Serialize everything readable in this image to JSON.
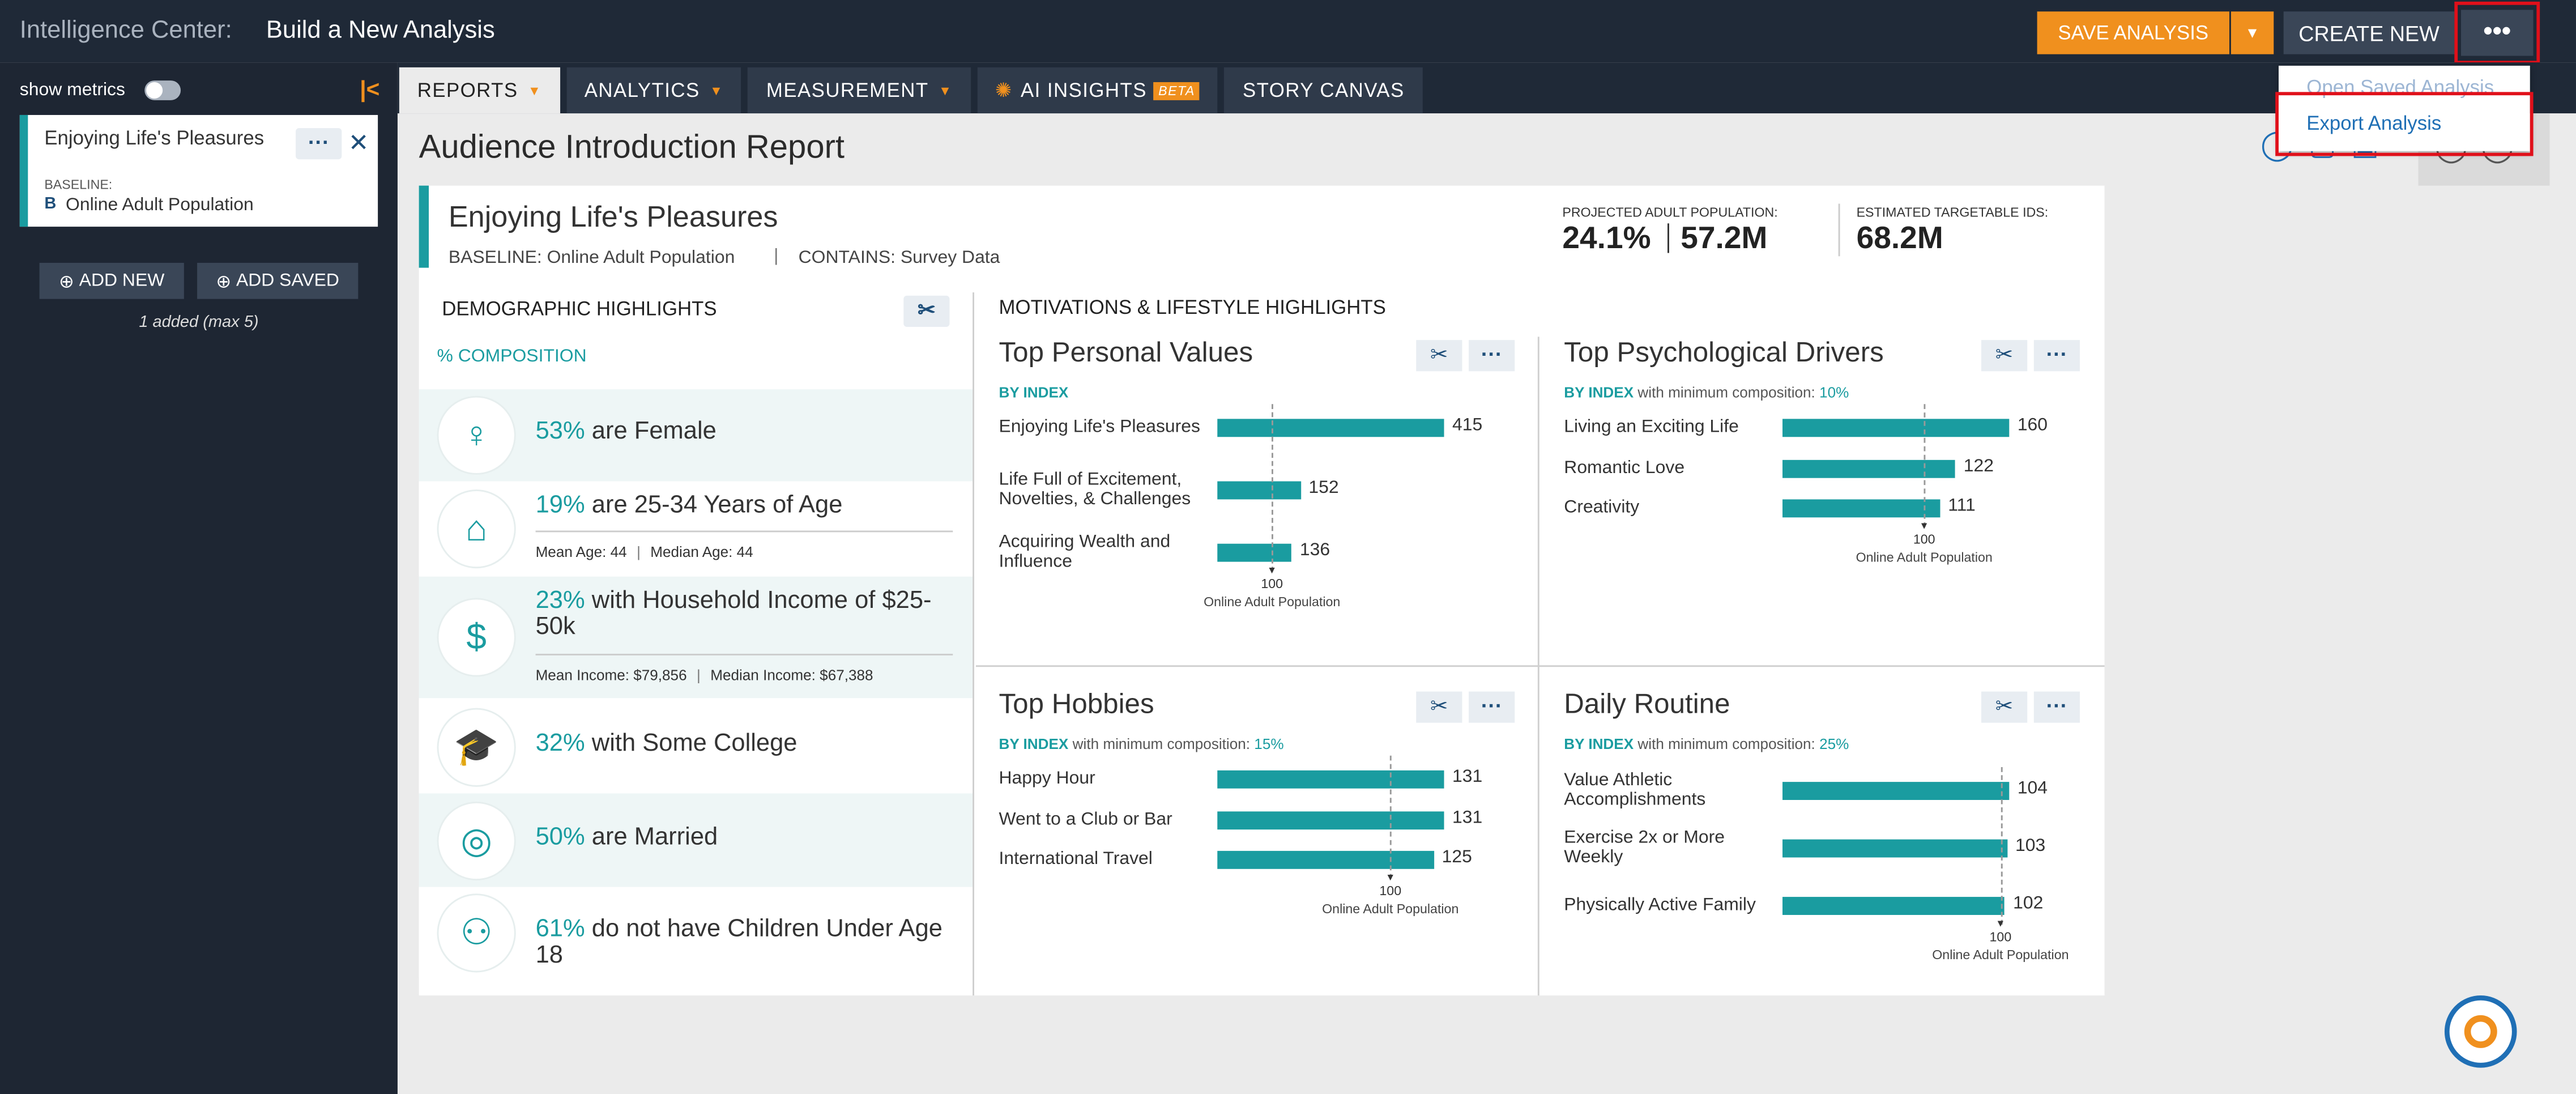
{
  "header": {
    "app": "Intelligence Center:",
    "title": "Build a New Analysis",
    "save": "SAVE ANALYSIS",
    "create": "CREATE NEW"
  },
  "menu": [
    "Open Saved Analysis",
    "Export Analysis"
  ],
  "sidebar": {
    "show_metrics": "show metrics",
    "audience": "Enjoying Life's Pleasures",
    "baseline_label": "BASELINE:",
    "baseline_badge": "B",
    "baseline": "Online Adult Population",
    "add_new": "ADD NEW",
    "add_saved": "ADD SAVED",
    "count": "1 added (max 5)"
  },
  "tabs": [
    "REPORTS",
    "ANALYTICS",
    "MEASUREMENT",
    "AI INSIGHTS",
    "STORY CANVAS"
  ],
  "beta": "BETA",
  "report": {
    "title": "Audience Introduction Report",
    "audience": "Enjoying Life's Pleasures",
    "baseline": "BASELINE: Online Adult Population",
    "contains": "CONTAINS: Survey Data",
    "projected_label": "PROJECTED ADULT POPULATION:",
    "projected_pct": "24.1%",
    "projected_count": "57.2M",
    "targetable_label": "ESTIMATED TARGETABLE IDS:",
    "targetable": "68.2M"
  },
  "demographics": {
    "title": "DEMOGRAPHIC HIGHLIGHTS",
    "subtitle": "% COMPOSITION",
    "items": [
      {
        "pct": "53%",
        "text": "are Female"
      },
      {
        "pct": "19%",
        "text": "are 25-34 Years of Age",
        "details": [
          "Mean Age: 44",
          "Median Age: 44"
        ]
      },
      {
        "pct": "23%",
        "text": "with Household Income of $25-50k",
        "details": [
          "Mean Income: $79,856",
          "Median Income: $67,388"
        ]
      },
      {
        "pct": "32%",
        "text": "with Some College"
      },
      {
        "pct": "50%",
        "text": "are Married"
      },
      {
        "pct": "61%",
        "text": "do not have Children Under Age 18"
      }
    ]
  },
  "motivations": {
    "title": "MOTIVATIONS & LIFESTYLE HIGHLIGHTS",
    "panels": [
      {
        "title": "Top Personal Values",
        "by": "BY INDEX",
        "baseline_value": 100,
        "baseline_label": "Online Adult Population",
        "items": [
          {
            "label": "Enjoying Life's Pleasures",
            "value": 415
          },
          {
            "label": "Life Full of Excitement, Novelties, & Challenges",
            "value": 152
          },
          {
            "label": "Acquiring Wealth and Influence",
            "value": 136
          }
        ]
      },
      {
        "title": "Top Psychological Drivers",
        "by": "BY INDEX",
        "note": "with minimum composition:",
        "min": "10%",
        "baseline_value": 100,
        "baseline_label": "Online Adult Population",
        "items": [
          {
            "label": "Living an Exciting Life",
            "value": 160
          },
          {
            "label": "Romantic Love",
            "value": 122
          },
          {
            "label": "Creativity",
            "value": 111
          }
        ]
      },
      {
        "title": "Top Hobbies",
        "by": "BY INDEX",
        "note": "with minimum composition:",
        "min": "15%",
        "baseline_value": 100,
        "baseline_label": "Online Adult Population",
        "items": [
          {
            "label": "Happy Hour",
            "value": 131
          },
          {
            "label": "Went to a Club or Bar",
            "value": 131
          },
          {
            "label": "International Travel",
            "value": 125
          }
        ]
      },
      {
        "title": "Daily Routine",
        "by": "BY INDEX",
        "note": "with minimum composition:",
        "min": "25%",
        "baseline_value": 100,
        "baseline_label": "Online Adult Population",
        "items": [
          {
            "label": "Value Athletic Accomplishments",
            "value": 104
          },
          {
            "label": "Exercise 2x or More Weekly",
            "value": 103
          },
          {
            "label": "Physically Active Family",
            "value": 102
          }
        ]
      }
    ]
  }
}
